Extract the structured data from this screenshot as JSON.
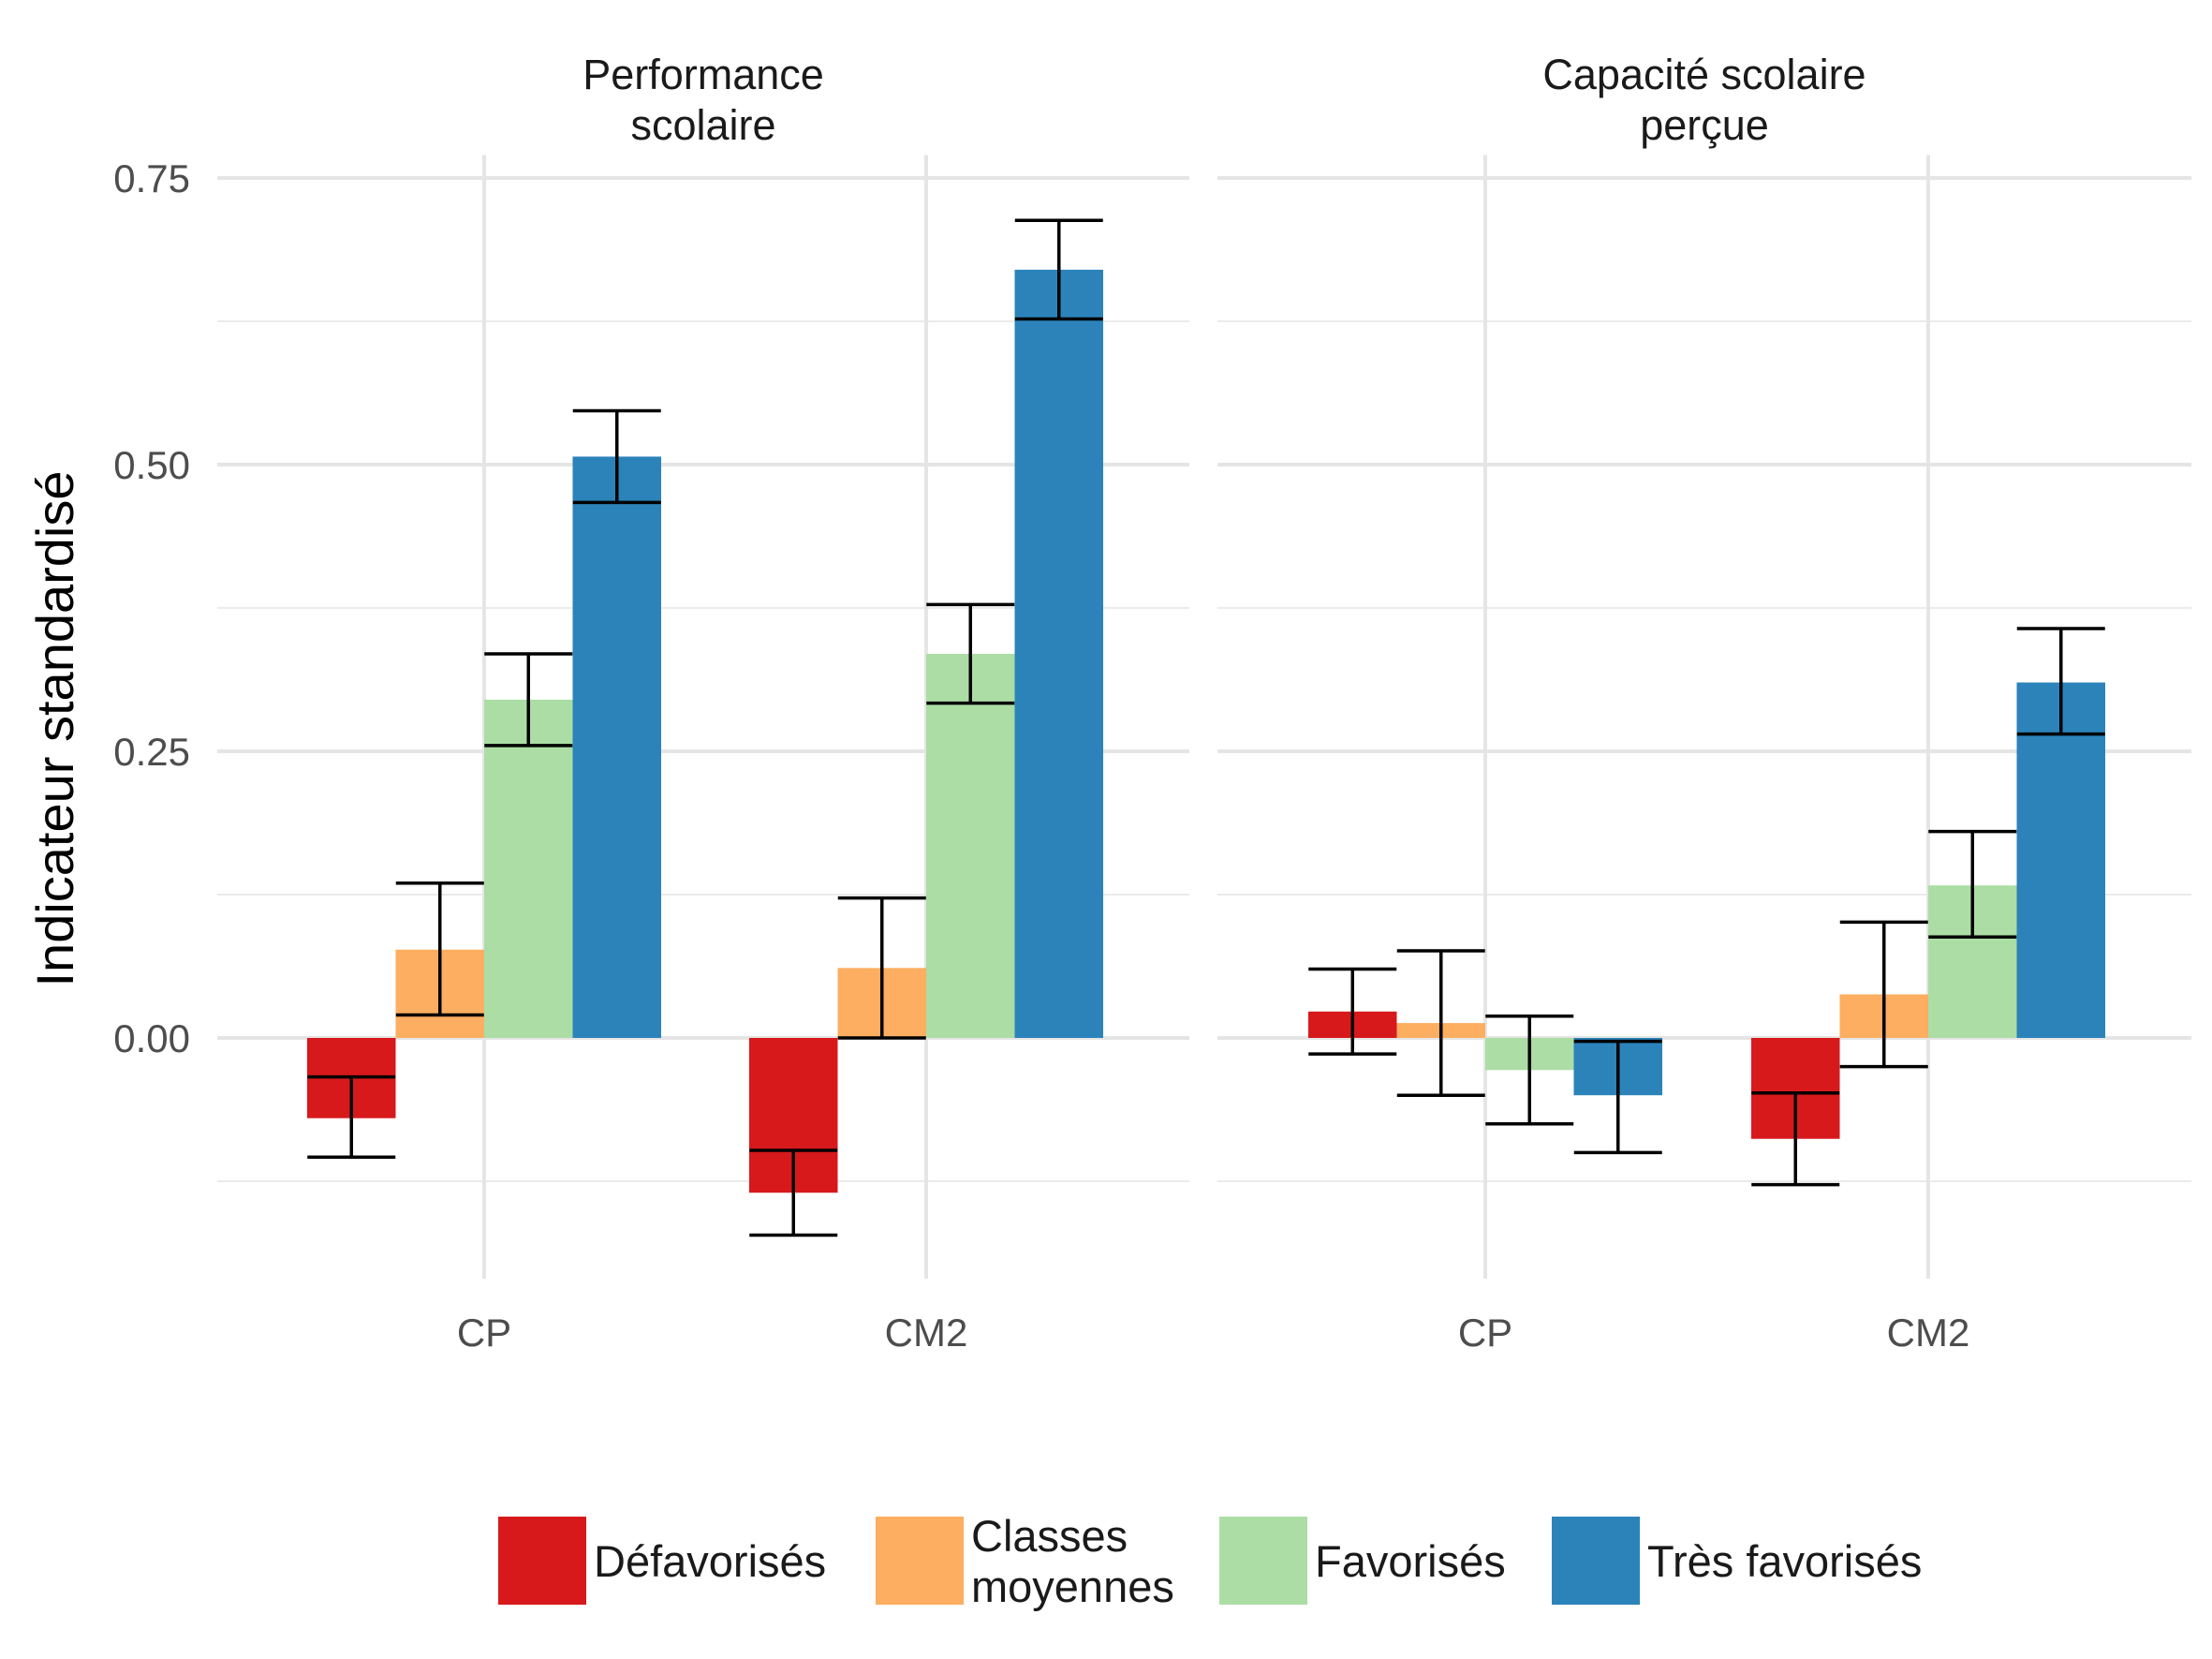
{
  "chart_data": {
    "type": "bar",
    "ylabel": "Indicateur standardisé",
    "xlabel": "",
    "ylim": [
      -0.21,
      0.77
    ],
    "yticks": [
      0.0,
      0.25,
      0.5,
      0.75
    ],
    "ytick_labels": [
      "0.00",
      "0.25",
      "0.50",
      "0.75"
    ],
    "grid": true,
    "legend_position": "bottom",
    "categories": [
      "CP",
      "CM2"
    ],
    "series_legend": [
      {
        "name": "Défavorisés",
        "lines": [
          "Défavorisés"
        ],
        "color": "#d7191c"
      },
      {
        "name": "Classes moyennes",
        "lines": [
          "Classes",
          "moyennes"
        ],
        "color": "#fdae61"
      },
      {
        "name": "Favorisés",
        "lines": [
          "Favorisés"
        ],
        "color": "#abdda4"
      },
      {
        "name": "Très favorisés",
        "lines": [
          "Très favorisés"
        ],
        "color": "#2b83ba"
      }
    ],
    "panels": [
      {
        "title_lines": [
          "Performance",
          "scolaire"
        ],
        "values": [
          [
            -0.07,
            -0.135
          ],
          [
            0.077,
            0.061
          ],
          [
            0.295,
            0.335
          ],
          [
            0.507,
            0.67
          ]
        ],
        "err_low": [
          [
            -0.104,
            -0.172
          ],
          [
            0.02,
            0.0
          ],
          [
            0.255,
            0.292
          ],
          [
            0.467,
            0.627
          ]
        ],
        "err_high": [
          [
            -0.034,
            -0.098
          ],
          [
            0.135,
            0.122
          ],
          [
            0.335,
            0.378
          ],
          [
            0.547,
            0.713
          ]
        ]
      },
      {
        "title_lines": [
          "Capacité scolaire",
          "perçue"
        ],
        "values": [
          [
            0.023,
            -0.088
          ],
          [
            0.013,
            0.038
          ],
          [
            -0.028,
            0.133
          ],
          [
            -0.05,
            0.31
          ]
        ],
        "err_low": [
          [
            -0.014,
            -0.128
          ],
          [
            -0.05,
            -0.025
          ],
          [
            -0.075,
            0.088
          ],
          [
            -0.1,
            0.265
          ]
        ],
        "err_high": [
          [
            0.06,
            -0.048
          ],
          [
            0.076,
            0.101
          ],
          [
            0.019,
            0.18
          ],
          [
            -0.003,
            0.357
          ]
        ]
      }
    ]
  }
}
